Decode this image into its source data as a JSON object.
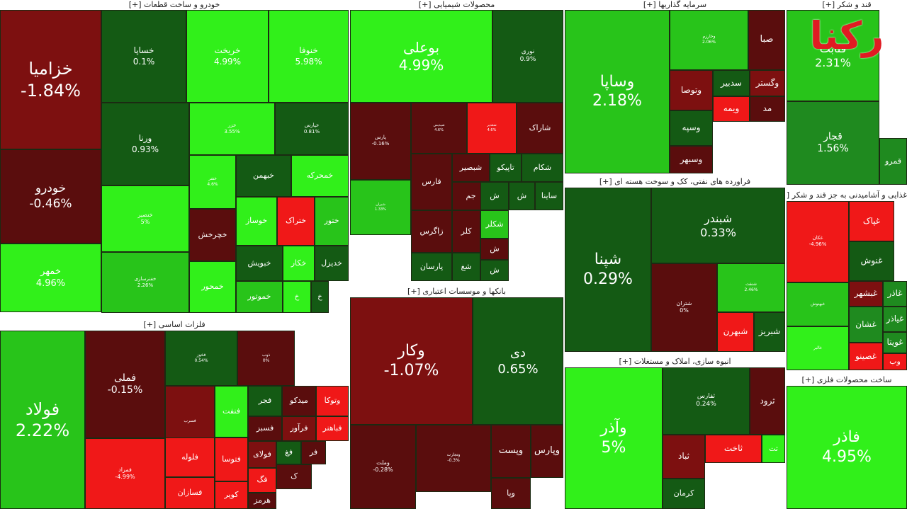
{
  "colors": {
    "strong_pos": "#31f01a",
    "pos": "#28c41a",
    "mild_pos": "#1f8a1f",
    "flat_pos": "#145a14",
    "flat_neg": "#5a0d0d",
    "mild_neg": "#7d1010",
    "strong_neg": "#f01818",
    "border": "#1b2a12",
    "header_bg": "#ffffff",
    "logo_red": "#e01b22"
  },
  "logo": {
    "text": "رکنا"
  },
  "chart_data": {
    "type": "treemap",
    "sectors": [
      {
        "name": "خودرو و ساخت قطعات [+]",
        "tiles": [
          {
            "symbol": "خزامیا",
            "change": "-1.84%"
          },
          {
            "symbol": "خودرو",
            "change": "-0.46%"
          },
          {
            "symbol": "خمهر",
            "change": "4.96%"
          },
          {
            "symbol": "خساپا",
            "change": "0.1%"
          },
          {
            "symbol": "خریخت",
            "change": "4.99%"
          },
          {
            "symbol": "خنوفا",
            "change": "5.98%"
          },
          {
            "symbol": "ورنا",
            "change": "0.93%"
          },
          {
            "symbol": "خزر",
            "change": "3.55%"
          },
          {
            "symbol": "خپارس",
            "change": "0.81%"
          },
          {
            "symbol": "خنصیر",
            "change": "5%"
          },
          {
            "symbol": "خفنر",
            "change": "4.6%"
          },
          {
            "symbol": "خبهمن",
            "change": ""
          },
          {
            "symbol": "خمحرکه",
            "change": ""
          },
          {
            "symbol": "خچرخش",
            "change": ""
          },
          {
            "symbol": "خوساز",
            "change": ""
          },
          {
            "symbol": "ختراک",
            "change": ""
          },
          {
            "symbol": "ختور",
            "change": ""
          },
          {
            "symbol": "خفنرسازی",
            "change": "2.26%"
          },
          {
            "symbol": "خمحور",
            "change": ""
          },
          {
            "symbol": "خبویش",
            "change": ""
          },
          {
            "symbol": "خکار",
            "change": ""
          },
          {
            "symbol": "خدیزل",
            "change": ""
          },
          {
            "symbol": "خموتور",
            "change": ""
          },
          {
            "symbol": "خ",
            "change": ""
          },
          {
            "symbol": "خ",
            "change": ""
          }
        ]
      },
      {
        "name": "محصولات شیمیایی [+]",
        "tiles": [
          {
            "symbol": "بوعلی",
            "change": "4.99%"
          },
          {
            "symbol": "نوری",
            "change": "0.9%"
          },
          {
            "symbol": "پارس",
            "change": "-0.16%"
          },
          {
            "symbol": "شپدیس",
            "change": "4.6%"
          },
          {
            "symbol": "شغدیر",
            "change": "4.6%"
          },
          {
            "symbol": "شاراک",
            "change": ""
          },
          {
            "symbol": "فارس",
            "change": ""
          },
          {
            "symbol": "شبصیر",
            "change": ""
          },
          {
            "symbol": "تاپیکو",
            "change": ""
          },
          {
            "symbol": "شکام",
            "change": ""
          },
          {
            "symbol": "جم",
            "change": ""
          },
          {
            "symbol": "ش",
            "change": ""
          },
          {
            "symbol": "ش",
            "change": ""
          },
          {
            "symbol": "ساینا",
            "change": ""
          },
          {
            "symbol": "زاگرس",
            "change": ""
          },
          {
            "symbol": "کلر",
            "change": ""
          },
          {
            "symbol": "شکلر",
            "change": ""
          },
          {
            "symbol": "شیران",
            "change": "1.33%"
          },
          {
            "symbol": "ش",
            "change": ""
          },
          {
            "symbol": "پارسان",
            "change": ""
          },
          {
            "symbol": "شغ",
            "change": ""
          },
          {
            "symbol": "ش",
            "change": ""
          }
        ]
      },
      {
        "name": "سرمایه گذاریها [+]",
        "tiles": [
          {
            "symbol": "وساپا",
            "change": "2.18%"
          },
          {
            "symbol": "وخارزم",
            "change": "2.06%"
          },
          {
            "symbol": "صبا",
            "change": ""
          },
          {
            "symbol": "وتوصا",
            "change": ""
          },
          {
            "symbol": "سدبیر",
            "change": ""
          },
          {
            "symbol": "وگستر",
            "change": ""
          },
          {
            "symbol": "ویمه",
            "change": ""
          },
          {
            "symbol": "مد",
            "change": ""
          },
          {
            "symbol": "وسپه",
            "change": ""
          },
          {
            "symbol": "وسبهر",
            "change": ""
          }
        ]
      },
      {
        "name": "قند و شکر [+]",
        "tiles": [
          {
            "symbol": "قثابت",
            "change": "2.31%"
          },
          {
            "symbol": "قجار",
            "change": "1.56%"
          },
          {
            "symbol": "قمرو",
            "change": ""
          }
        ]
      },
      {
        "name": "فراورده های نفتی، کک و سوخت هسته ای [+]",
        "tiles": [
          {
            "symbol": "شپنا",
            "change": "0.29%"
          },
          {
            "symbol": "شبندر",
            "change": "0.33%"
          },
          {
            "symbol": "شتران",
            "change": "0%"
          },
          {
            "symbol": "شنفت",
            "change": "2.46%"
          },
          {
            "symbol": "شبهرن",
            "change": ""
          },
          {
            "symbol": "شبریز",
            "change": ""
          }
        ]
      },
      {
        "name": "غذایی و آشامیدنی به جز قند و شکر [+]",
        "tiles": [
          {
            "symbol": "غکان",
            "change": "-4.96%"
          },
          {
            "symbol": "غپاک",
            "change": ""
          },
          {
            "symbol": "غنوش",
            "change": ""
          },
          {
            "symbol": "غبشهر",
            "change": ""
          },
          {
            "symbol": "غاذر",
            "change": ""
          },
          {
            "symbol": "غشان",
            "change": ""
          },
          {
            "symbol": "غبهنوش",
            "change": ""
          },
          {
            "symbol": "غالبر",
            "change": ""
          },
          {
            "symbol": "غصینو",
            "change": ""
          },
          {
            "symbol": "غیاذر",
            "change": ""
          },
          {
            "symbol": "غویتا",
            "change": ""
          },
          {
            "symbol": "وب",
            "change": ""
          }
        ]
      },
      {
        "name": "فلزات اساسی [+]",
        "tiles": [
          {
            "symbol": "فولاد",
            "change": "2.22%"
          },
          {
            "symbol": "فملی",
            "change": "-0.15%"
          },
          {
            "symbol": "فمراد",
            "change": "-4.99%"
          },
          {
            "symbol": "فخوز",
            "change": "0.54%"
          },
          {
            "symbol": "ذوب",
            "change": "0%"
          },
          {
            "symbol": "فسرب",
            "change": ""
          },
          {
            "symbol": "فجر",
            "change": ""
          },
          {
            "symbol": "میدکو",
            "change": ""
          },
          {
            "symbol": "وتوکا",
            "change": ""
          },
          {
            "symbol": "فنفت",
            "change": ""
          },
          {
            "symbol": "فسبز",
            "change": ""
          },
          {
            "symbol": "فرآور",
            "change": ""
          },
          {
            "symbol": "فباهنر",
            "change": ""
          },
          {
            "symbol": "فلوله",
            "change": ""
          },
          {
            "symbol": "فتوسا",
            "change": ""
          },
          {
            "symbol": "فولای",
            "change": ""
          },
          {
            "symbol": "فغ",
            "change": ""
          },
          {
            "symbol": "فر",
            "change": ""
          },
          {
            "symbol": "فگ",
            "change": ""
          },
          {
            "symbol": "ک",
            "change": ""
          },
          {
            "symbol": "فسازان",
            "change": ""
          },
          {
            "symbol": "کویر",
            "change": ""
          },
          {
            "symbol": "هرمز",
            "change": ""
          }
        ]
      },
      {
        "name": "بانکها و موسسات اعتباری [+]",
        "tiles": [
          {
            "symbol": "وکار",
            "change": "-1.07%"
          },
          {
            "symbol": "دی",
            "change": "0.65%"
          },
          {
            "symbol": "وملت",
            "change": "-0.28%"
          },
          {
            "symbol": "وتجارت",
            "change": "-0.3%"
          },
          {
            "symbol": "وپست",
            "change": ""
          },
          {
            "symbol": "وپارس",
            "change": ""
          },
          {
            "symbol": "وپا",
            "change": ""
          }
        ]
      },
      {
        "name": "انبوه سازی، املاک و مستغلات [+]",
        "tiles": [
          {
            "symbol": "وآذر",
            "change": "5%"
          },
          {
            "symbol": "ثفارس",
            "change": "0.24%"
          },
          {
            "symbol": "ثرود",
            "change": ""
          },
          {
            "symbol": "ثباد",
            "change": ""
          },
          {
            "symbol": "ثاخت",
            "change": ""
          },
          {
            "symbol": "ثت",
            "change": ""
          },
          {
            "symbol": "کرمان",
            "change": ""
          }
        ]
      },
      {
        "name": "ساخت محصولات فلزی [+]",
        "tiles": [
          {
            "symbol": "فاذر",
            "change": "4.95%"
          }
        ]
      }
    ]
  }
}
